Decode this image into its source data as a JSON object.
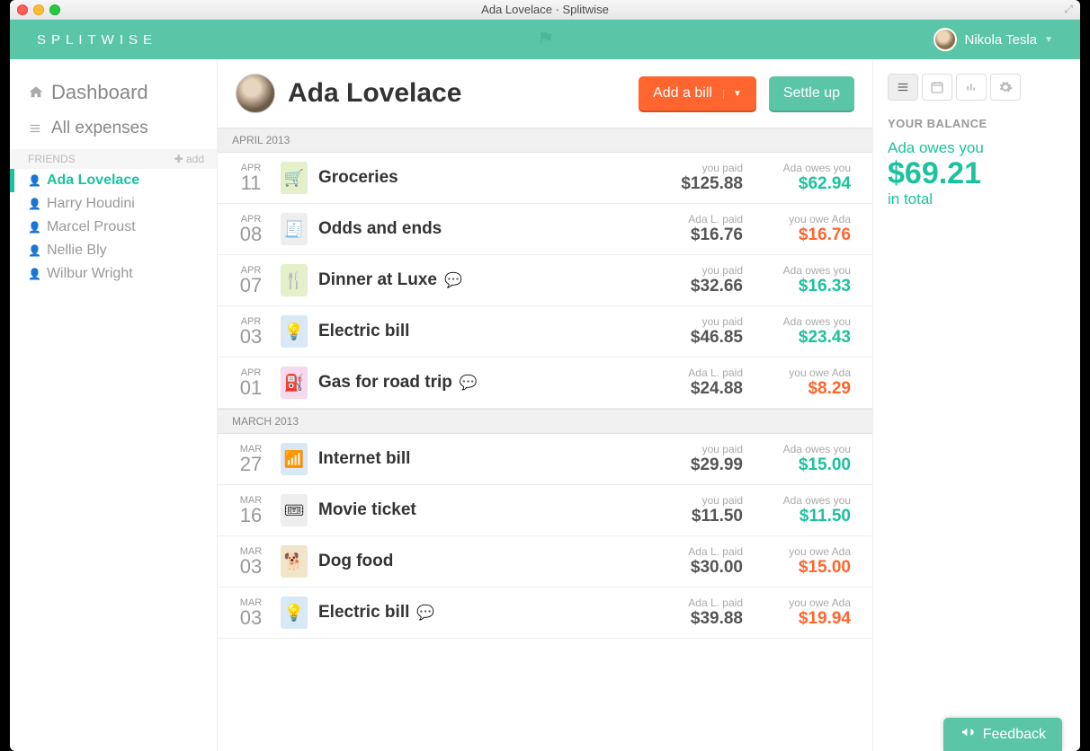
{
  "window": {
    "title": "Ada Lovelace · Splitwise"
  },
  "brand": "SPLITWISE",
  "user": {
    "name": "Nikola Tesla"
  },
  "nav": {
    "dashboard": "Dashboard",
    "all_expenses": "All expenses",
    "friends_label": "FRIENDS",
    "add_label": "add"
  },
  "friends": [
    {
      "name": "Ada Lovelace",
      "active": true
    },
    {
      "name": "Harry Houdini",
      "active": false
    },
    {
      "name": "Marcel Proust",
      "active": false
    },
    {
      "name": "Nellie Bly",
      "active": false
    },
    {
      "name": "Wilbur Wright",
      "active": false
    }
  ],
  "header": {
    "friend_name": "Ada Lovelace",
    "add_bill": "Add a bill",
    "settle_up": "Settle up"
  },
  "balance": {
    "title": "YOUR BALANCE",
    "line1": "Ada owes you",
    "amount": "$69.21",
    "line2": "in total"
  },
  "feedback": "Feedback",
  "colors": {
    "teal": "#5bc5a7",
    "teal_text": "#1cc29f",
    "orange": "#ff652f",
    "gray": "#999"
  },
  "months": [
    {
      "label": "APRIL 2013",
      "expenses": [
        {
          "m": "APR",
          "d": "11",
          "desc": "Groceries",
          "icon": "🛒",
          "icon_bg": "#e3f0c9",
          "comment": false,
          "paid_lbl": "you paid",
          "paid_amt": "$125.88",
          "owe_lbl": "Ada owes you",
          "owe_amt": "$62.94",
          "owe_color": "teal"
        },
        {
          "m": "APR",
          "d": "08",
          "desc": "Odds and ends",
          "icon": "🧾",
          "icon_bg": "#eeeeee",
          "comment": false,
          "paid_lbl": "Ada L. paid",
          "paid_amt": "$16.76",
          "owe_lbl": "you owe Ada",
          "owe_amt": "$16.76",
          "owe_color": "orange"
        },
        {
          "m": "APR",
          "d": "07",
          "desc": "Dinner at Luxe",
          "icon": "🍴",
          "icon_bg": "#e3f0c9",
          "comment": true,
          "paid_lbl": "you paid",
          "paid_amt": "$32.66",
          "owe_lbl": "Ada owes you",
          "owe_amt": "$16.33",
          "owe_color": "teal"
        },
        {
          "m": "APR",
          "d": "03",
          "desc": "Electric bill",
          "icon": "💡",
          "icon_bg": "#d9e8f5",
          "comment": false,
          "paid_lbl": "you paid",
          "paid_amt": "$46.85",
          "owe_lbl": "Ada owes you",
          "owe_amt": "$23.43",
          "owe_color": "teal"
        },
        {
          "m": "APR",
          "d": "01",
          "desc": "Gas for road trip",
          "icon": "⛽",
          "icon_bg": "#f5d9ec",
          "comment": true,
          "paid_lbl": "Ada L. paid",
          "paid_amt": "$24.88",
          "owe_lbl": "you owe Ada",
          "owe_amt": "$8.29",
          "owe_color": "orange"
        }
      ]
    },
    {
      "label": "MARCH 2013",
      "expenses": [
        {
          "m": "MAR",
          "d": "27",
          "desc": "Internet bill",
          "icon": "📶",
          "icon_bg": "#d9e8f5",
          "comment": false,
          "paid_lbl": "you paid",
          "paid_amt": "$29.99",
          "owe_lbl": "Ada owes you",
          "owe_amt": "$15.00",
          "owe_color": "teal"
        },
        {
          "m": "MAR",
          "d": "16",
          "desc": "Movie ticket",
          "icon": "🎟",
          "icon_bg": "#eeeeee",
          "comment": false,
          "paid_lbl": "you paid",
          "paid_amt": "$11.50",
          "owe_lbl": "Ada owes you",
          "owe_amt": "$11.50",
          "owe_color": "teal"
        },
        {
          "m": "MAR",
          "d": "03",
          "desc": "Dog food",
          "icon": "🐕",
          "icon_bg": "#f0e5c9",
          "comment": false,
          "paid_lbl": "Ada L. paid",
          "paid_amt": "$30.00",
          "owe_lbl": "you owe Ada",
          "owe_amt": "$15.00",
          "owe_color": "orange"
        },
        {
          "m": "MAR",
          "d": "03",
          "desc": "Electric bill",
          "icon": "💡",
          "icon_bg": "#d9e8f5",
          "comment": true,
          "paid_lbl": "Ada L. paid",
          "paid_amt": "$39.88",
          "owe_lbl": "you owe Ada",
          "owe_amt": "$19.94",
          "owe_color": "orange"
        }
      ]
    }
  ]
}
